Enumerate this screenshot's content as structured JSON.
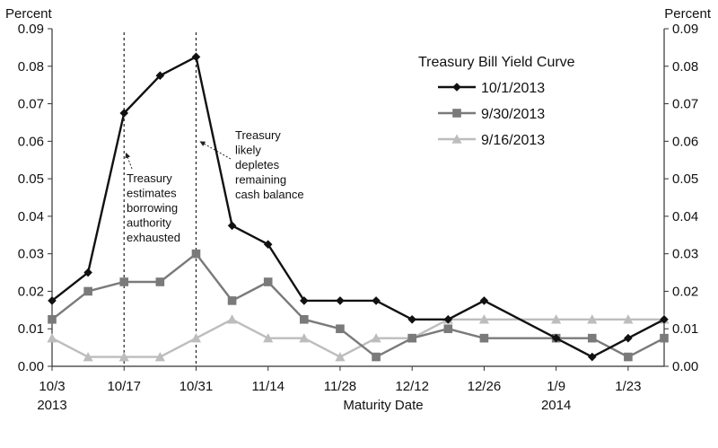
{
  "chart_data": {
    "type": "line",
    "xlabel": "Maturity Date",
    "ylabel_left": "Percent",
    "ylabel_right": "Percent",
    "ylim": [
      0,
      0.09
    ],
    "y_ticks": [
      "0.00",
      "0.01",
      "0.02",
      "0.03",
      "0.04",
      "0.05",
      "0.06",
      "0.07",
      "0.08",
      "0.09"
    ],
    "x_ticks": [
      {
        "at": "2013-10-03",
        "label": "10/3",
        "sub": "2013"
      },
      {
        "at": "2013-10-17",
        "label": "10/17",
        "sub": ""
      },
      {
        "at": "2013-10-31",
        "label": "10/31",
        "sub": ""
      },
      {
        "at": "2013-11-14",
        "label": "11/14",
        "sub": ""
      },
      {
        "at": "2013-11-28",
        "label": "11/28",
        "sub": ""
      },
      {
        "at": "2013-12-12",
        "label": "12/12",
        "sub": ""
      },
      {
        "at": "2013-12-26",
        "label": "12/26",
        "sub": ""
      },
      {
        "at": "2014-01-09",
        "label": "1/9",
        "sub": "2014"
      },
      {
        "at": "2014-01-23",
        "label": "1/23",
        "sub": ""
      }
    ],
    "x": [
      "2013-10-03",
      "2013-10-10",
      "2013-10-17",
      "2013-10-24",
      "2013-10-31",
      "2013-11-07",
      "2013-11-14",
      "2013-11-21",
      "2013-11-28",
      "2013-12-05",
      "2013-12-12",
      "2013-12-19",
      "2013-12-26",
      "2014-01-09",
      "2014-01-16",
      "2014-01-23",
      "2014-01-30"
    ],
    "x_min": "2013-10-03",
    "x_max": "2014-01-30",
    "legend_title": "Treasury Bill Yield Curve",
    "legend_position": "top-right",
    "series": [
      {
        "name": "10/1/2013",
        "color": "#111111",
        "marker": "diamond",
        "values": [
          0.0175,
          0.025,
          0.0675,
          0.0775,
          0.0825,
          0.0375,
          0.0325,
          0.0175,
          0.0175,
          0.0175,
          0.0125,
          0.0125,
          0.0175,
          0.0075,
          0.0025,
          0.0075,
          0.0125
        ]
      },
      {
        "name": "9/30/2013",
        "color": "#7a7a7a",
        "marker": "square",
        "values": [
          0.0125,
          0.02,
          0.0225,
          0.0225,
          0.03,
          0.0175,
          0.0225,
          0.0125,
          0.01,
          0.0025,
          0.0075,
          0.01,
          0.0075,
          0.0075,
          0.0075,
          0.0025,
          0.0075
        ]
      },
      {
        "name": "9/16/2013",
        "color": "#bdbdbd",
        "marker": "triangle",
        "values": [
          0.0075,
          0.0025,
          0.0025,
          0.0025,
          0.0075,
          0.0125,
          0.0075,
          0.0075,
          0.0025,
          0.0075,
          0.0075,
          0.0125,
          0.0125,
          0.0125,
          0.0125,
          0.0125,
          0.0125
        ]
      }
    ],
    "vlines": [
      "2013-10-17",
      "2013-10-31"
    ],
    "annotations": [
      {
        "id": "borrowing",
        "lines": [
          "Treasury",
          "estimates",
          "borrowing",
          "authority",
          "exhausted"
        ],
        "arrow_to": {
          "x": "2013-10-17",
          "y": 0.057
        }
      },
      {
        "id": "depletes",
        "lines": [
          "Treasury",
          "likely",
          "depletes",
          "remaining",
          "cash balance"
        ],
        "arrow_to": {
          "x": "2013-10-31",
          "y": 0.06
        }
      }
    ],
    "grid": false
  }
}
